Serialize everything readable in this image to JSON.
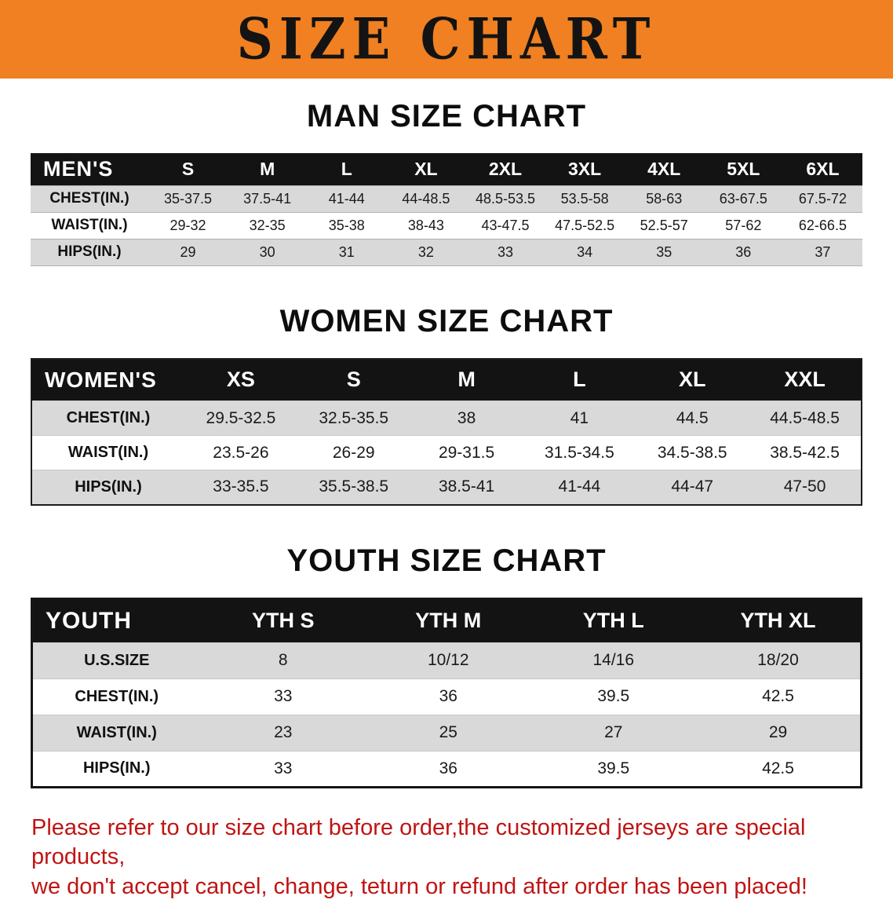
{
  "banner": {
    "title": "SIZE CHART",
    "bg_color": "#f08021"
  },
  "men": {
    "heading": "MAN SIZE CHART",
    "table": {
      "header": [
        "MEN'S",
        "S",
        "M",
        "L",
        "XL",
        "2XL",
        "3XL",
        "4XL",
        "5XL",
        "6XL"
      ],
      "rows": [
        [
          "CHEST(IN.)",
          "35-37.5",
          "37.5-41",
          "41-44",
          "44-48.5",
          "48.5-53.5",
          "53.5-58",
          "58-63",
          "63-67.5",
          "67.5-72"
        ],
        [
          "WAIST(IN.)",
          "29-32",
          "32-35",
          "35-38",
          "38-43",
          "43-47.5",
          "47.5-52.5",
          "52.5-57",
          "57-62",
          "62-66.5"
        ],
        [
          "HIPS(IN.)",
          "29",
          "30",
          "31",
          "32",
          "33",
          "34",
          "35",
          "36",
          "37"
        ]
      ]
    }
  },
  "women": {
    "heading": "WOMEN SIZE CHART",
    "table": {
      "header": [
        "WOMEN'S",
        "XS",
        "S",
        "M",
        "L",
        "XL",
        "XXL"
      ],
      "rows": [
        [
          "CHEST(IN.)",
          "29.5-32.5",
          "32.5-35.5",
          "38",
          "41",
          "44.5",
          "44.5-48.5"
        ],
        [
          "WAIST(IN.)",
          "23.5-26",
          "26-29",
          "29-31.5",
          "31.5-34.5",
          "34.5-38.5",
          "38.5-42.5"
        ],
        [
          "HIPS(IN.)",
          "33-35.5",
          "35.5-38.5",
          "38.5-41",
          "41-44",
          "44-47",
          "47-50"
        ]
      ]
    }
  },
  "youth": {
    "heading": "YOUTH SIZE CHART",
    "table": {
      "header": [
        "YOUTH",
        "YTH S",
        "YTH M",
        "YTH L",
        "YTH XL"
      ],
      "rows": [
        [
          "U.S.SIZE",
          "8",
          "10/12",
          "14/16",
          "18/20"
        ],
        [
          "CHEST(IN.)",
          "33",
          "36",
          "39.5",
          "42.5"
        ],
        [
          "WAIST(IN.)",
          "23",
          "25",
          "27",
          "29"
        ],
        [
          "HIPS(IN.)",
          "33",
          "36",
          "39.5",
          "42.5"
        ]
      ]
    }
  },
  "disclaimer": {
    "line1": "Please refer to our size chart before order,the customized jerseys are special products,",
    "line2": "we don't accept cancel, change, teturn or refund after order has been placed!",
    "color": "#c01414"
  }
}
